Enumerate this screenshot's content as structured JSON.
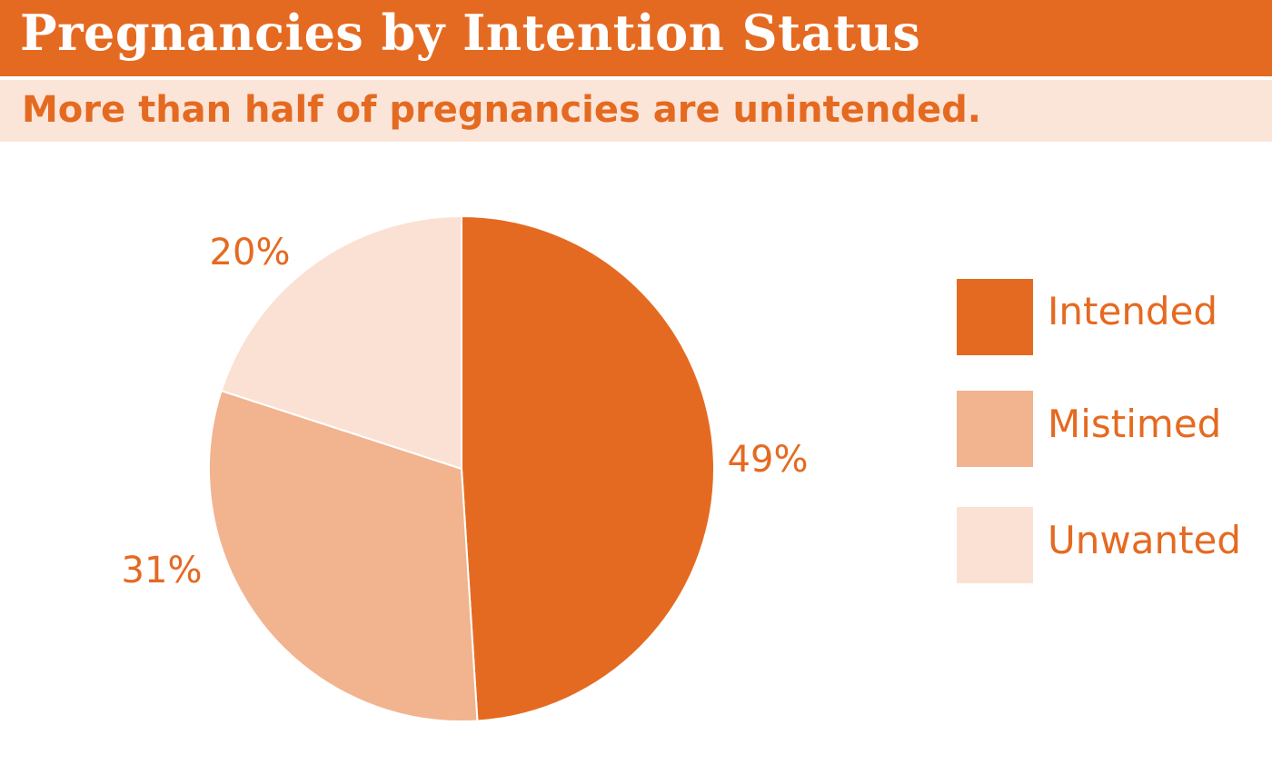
{
  "header": {
    "title": "Pregnancies by Intention Status",
    "subtitle": "More than half of pregnancies are unintended."
  },
  "colors": {
    "title_bar": "#e56a21",
    "subtitle_bar": "#fbe5d8",
    "text_accent": "#e56a21"
  },
  "chart_data": {
    "type": "pie",
    "title": "Pregnancies by Intention Status",
    "subtitle": "More than half of pregnancies are unintended.",
    "categories": [
      "Intended",
      "Mistimed",
      "Unwanted"
    ],
    "values": [
      49,
      31,
      20
    ],
    "data_labels": [
      "49%",
      "31%",
      "20%"
    ],
    "colors": [
      "#e56a21",
      "#f2b38f",
      "#fbe1d3"
    ],
    "legend": [
      "Intended",
      "Mistimed",
      "Unwanted"
    ],
    "legend_position": "right",
    "start_angle": "12 o'clock",
    "direction": "clockwise"
  }
}
